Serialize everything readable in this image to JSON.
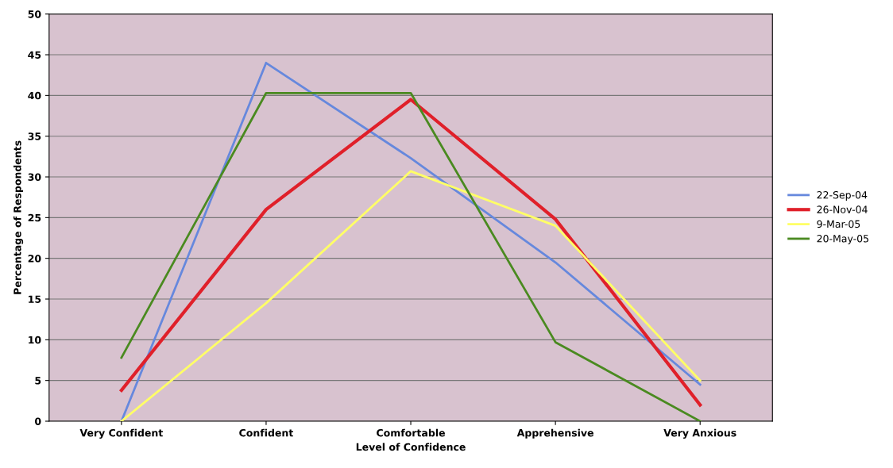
{
  "chart_data": {
    "type": "line",
    "xlabel": "Level of Confidence",
    "ylabel": "Percentage of Respondents",
    "categories": [
      "Very Confident",
      "Confident",
      "Comfortable",
      "Apprehensive",
      "Very Anxious"
    ],
    "series": [
      {
        "name": "22-Sep-04",
        "color": "#6688dd",
        "values": [
          0,
          44,
          32.3,
          19.5,
          4.5
        ]
      },
      {
        "name": "26-Nov-04",
        "color": "#e0202a",
        "values": [
          3.8,
          26,
          39.5,
          24.8,
          2
        ]
      },
      {
        "name": "9-Mar-05",
        "color": "#ffff66",
        "values": [
          0,
          14.5,
          30.7,
          24,
          5
        ]
      },
      {
        "name": "20-May-05",
        "color": "#4a8a20",
        "values": [
          7.8,
          40.3,
          40.3,
          9.7,
          0
        ]
      }
    ],
    "ylim": [
      0,
      50
    ],
    "yticks": [
      0,
      5,
      10,
      15,
      20,
      25,
      30,
      35,
      40,
      45,
      50
    ],
    "grid": "y",
    "legend": "right",
    "marker": "none",
    "line_style": "solid"
  }
}
